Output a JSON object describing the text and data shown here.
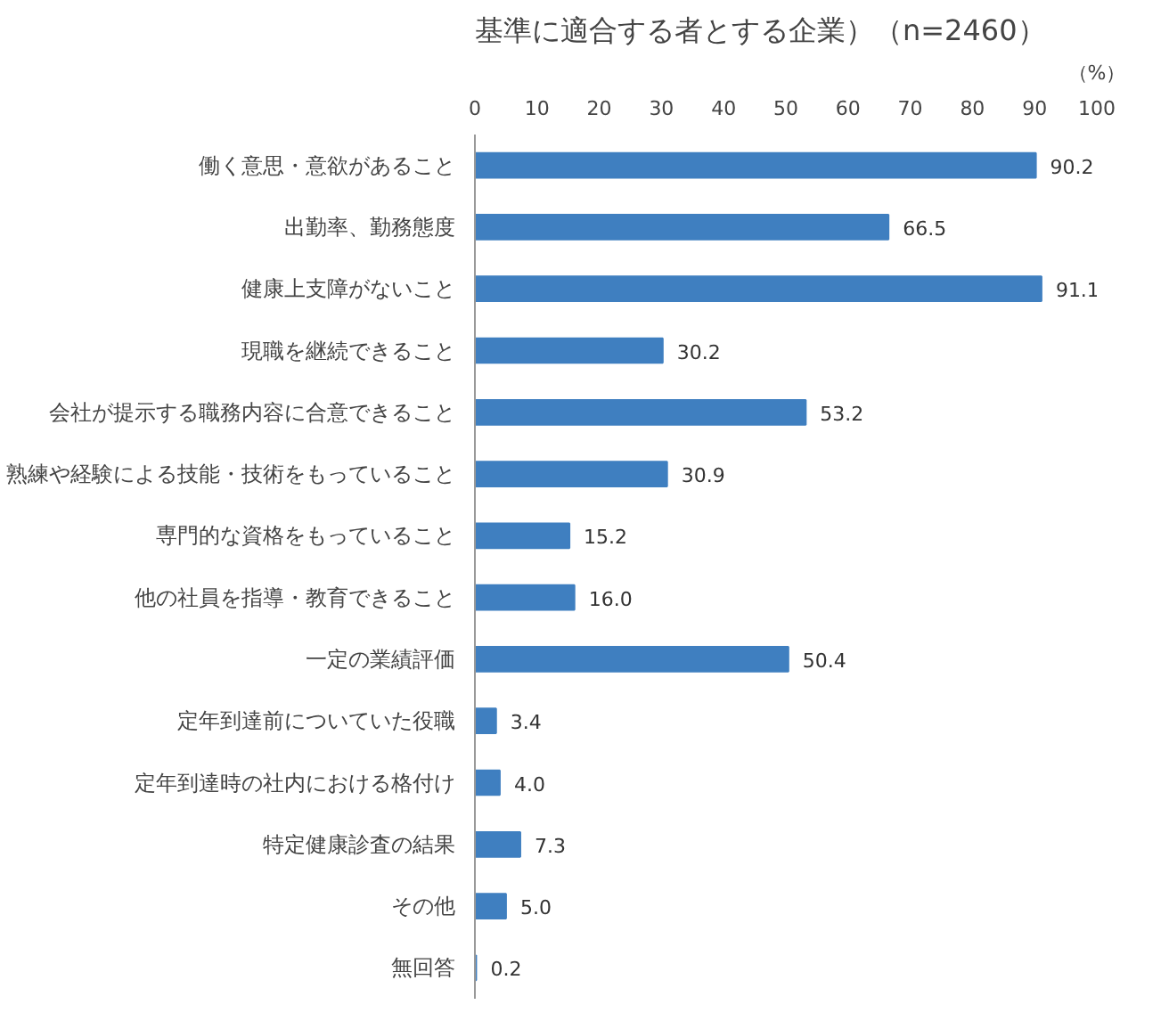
{
  "chart_data": {
    "type": "bar",
    "orientation": "horizontal",
    "title": "基準に適合する者とする企業）（n=2460）",
    "xlabel": "（%）",
    "categories": [
      "働く意思・意欲があること",
      "出勤率、勤務態度",
      "健康上支障がないこと",
      "現職を継続できること",
      "会社が提示する職務内容に合意できること",
      "熟練や経験による技能・技術をもっていること",
      "専門的な資格をもっていること",
      "他の社員を指導・教育できること",
      "一定の業績評価",
      "定年到達前についていた役職",
      "定年到達時の社内における格付け",
      "特定健康診査の結果",
      "その他",
      "無回答"
    ],
    "values": [
      90.2,
      66.5,
      91.1,
      30.2,
      53.2,
      30.9,
      15.2,
      16.0,
      50.4,
      3.4,
      4.0,
      7.3,
      5.0,
      0.2
    ],
    "value_labels": [
      "90.2",
      "66.5",
      "91.1",
      "30.2",
      "53.2",
      "30.9",
      "15.2",
      "16.0",
      "50.4",
      "3.4",
      "4.0",
      "7.3",
      "5.0",
      "0.2"
    ],
    "color": "#3f7fc0",
    "xlim": [
      0,
      100
    ],
    "xticks": [
      0,
      10,
      20,
      30,
      40,
      50,
      60,
      70,
      80,
      90,
      100
    ],
    "grid": false
  }
}
